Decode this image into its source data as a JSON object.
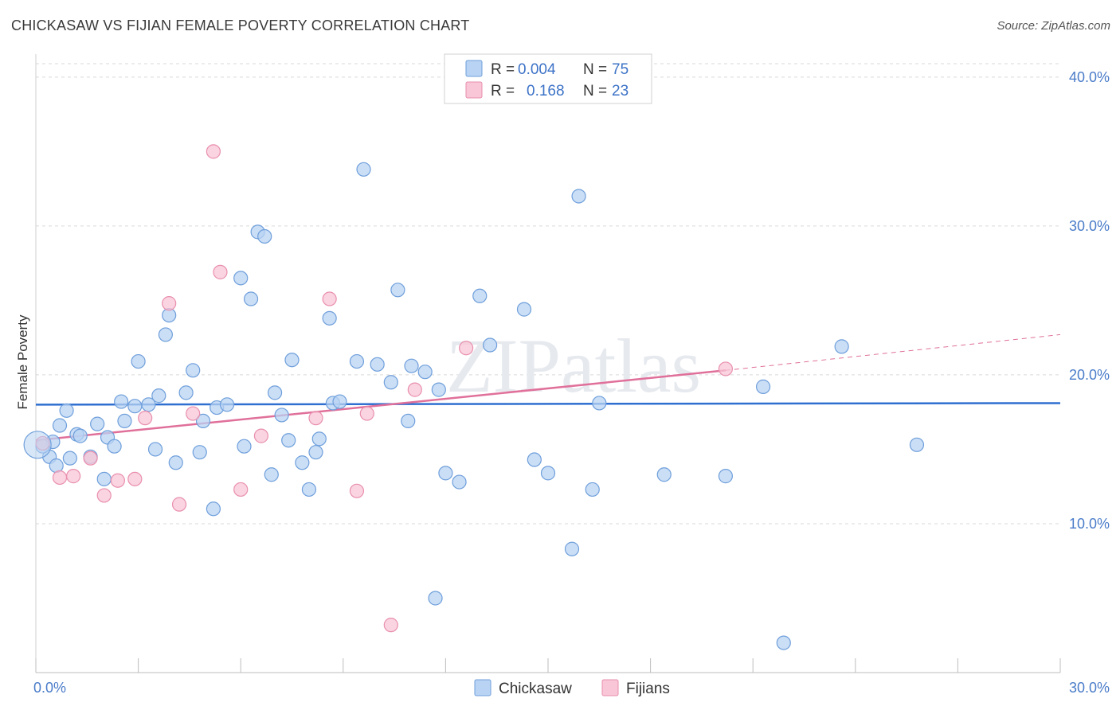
{
  "title": "CHICKASAW VS FIJIAN FEMALE POVERTY CORRELATION CHART",
  "source": "Source: ZipAtlas.com",
  "watermark": "ZIPatlas",
  "colors": {
    "chickasaw_fill": "#b8d3f3",
    "chickasaw_stroke": "#6f9fdb",
    "chickasaw_line": "#2f6fd0",
    "fijians_fill": "#f8c6d6",
    "fijians_stroke": "#e98fae",
    "fijians_line": "#e0709a",
    "tick_label": "#4a7cc9",
    "grid": "#d9d9d9"
  },
  "legend": {
    "rows": [
      {
        "r_label": "R =",
        "r_value": "0.004",
        "n_label": "N =",
        "n_value": "75"
      },
      {
        "r_label": "R =",
        "r_value": "0.168",
        "n_label": "N =",
        "n_value": "23"
      }
    ]
  },
  "bottom_legend": [
    "Chickasaw",
    "Fijians"
  ],
  "chart_data": {
    "type": "scatter",
    "title": "CHICKASAW VS FIJIAN FEMALE POVERTY CORRELATION CHART",
    "xlabel": "",
    "ylabel": "Female Poverty",
    "xlim": [
      0,
      30
    ],
    "ylim": [
      0,
      40
    ],
    "x_tick_labels": [
      "0.0%",
      "30.0%"
    ],
    "y_ticks": [
      10,
      20,
      30,
      40
    ],
    "y_tick_labels": [
      "10.0%",
      "20.0%",
      "30.0%",
      "40.0%"
    ],
    "grid": true,
    "legend_position": "top-center",
    "series": [
      {
        "name": "Chickasaw",
        "R": 0.004,
        "N": 75,
        "trend": {
          "x": [
            0,
            30
          ],
          "y": [
            18.0,
            18.1
          ]
        },
        "points": [
          [
            0.5,
            15.5
          ],
          [
            0.4,
            14.5
          ],
          [
            0.6,
            13.9
          ],
          [
            0.7,
            16.6
          ],
          [
            0.9,
            17.6
          ],
          [
            1.0,
            14.4
          ],
          [
            1.2,
            16.0
          ],
          [
            1.3,
            15.9
          ],
          [
            1.6,
            14.5
          ],
          [
            1.8,
            16.7
          ],
          [
            2.0,
            13.0
          ],
          [
            2.1,
            15.8
          ],
          [
            2.3,
            15.2
          ],
          [
            2.5,
            18.2
          ],
          [
            2.6,
            16.9
          ],
          [
            2.9,
            17.9
          ],
          [
            3.0,
            20.9
          ],
          [
            3.3,
            18.0
          ],
          [
            3.5,
            15.0
          ],
          [
            3.6,
            18.6
          ],
          [
            3.8,
            22.7
          ],
          [
            3.9,
            24.0
          ],
          [
            4.1,
            14.1
          ],
          [
            4.4,
            18.8
          ],
          [
            4.6,
            20.3
          ],
          [
            4.8,
            14.8
          ],
          [
            4.9,
            16.9
          ],
          [
            5.2,
            11.0
          ],
          [
            5.3,
            17.8
          ],
          [
            5.6,
            18.0
          ],
          [
            6.0,
            26.5
          ],
          [
            6.1,
            15.2
          ],
          [
            6.3,
            25.1
          ],
          [
            6.5,
            29.6
          ],
          [
            6.7,
            29.3
          ],
          [
            6.9,
            13.3
          ],
          [
            7.0,
            18.8
          ],
          [
            7.2,
            17.3
          ],
          [
            7.4,
            15.6
          ],
          [
            7.5,
            21.0
          ],
          [
            7.8,
            14.1
          ],
          [
            8.0,
            12.3
          ],
          [
            8.2,
            14.8
          ],
          [
            8.3,
            15.7
          ],
          [
            8.6,
            23.8
          ],
          [
            8.7,
            18.1
          ],
          [
            8.9,
            18.2
          ],
          [
            9.4,
            20.9
          ],
          [
            9.6,
            33.8
          ],
          [
            10.0,
            20.7
          ],
          [
            10.4,
            19.5
          ],
          [
            10.6,
            25.7
          ],
          [
            10.9,
            16.9
          ],
          [
            11.0,
            20.6
          ],
          [
            11.4,
            20.2
          ],
          [
            11.7,
            5.0
          ],
          [
            11.8,
            19.0
          ],
          [
            12.0,
            13.4
          ],
          [
            12.4,
            12.8
          ],
          [
            13.0,
            25.3
          ],
          [
            13.3,
            22.0
          ],
          [
            14.3,
            24.4
          ],
          [
            14.6,
            14.3
          ],
          [
            15.0,
            13.4
          ],
          [
            15.7,
            8.3
          ],
          [
            15.9,
            32.0
          ],
          [
            16.3,
            12.3
          ],
          [
            16.5,
            18.1
          ],
          [
            18.4,
            13.3
          ],
          [
            20.2,
            13.2
          ],
          [
            21.3,
            19.2
          ],
          [
            21.9,
            2.0
          ],
          [
            23.6,
            21.9
          ],
          [
            25.8,
            15.3
          ],
          [
            0.2,
            15.2
          ]
        ]
      },
      {
        "name": "Fijians",
        "R": 0.168,
        "N": 23,
        "trend": {
          "x": [
            0,
            20.2
          ],
          "y": [
            15.6,
            20.3
          ],
          "dashed_to": {
            "x": 30,
            "y": 22.7
          }
        },
        "points": [
          [
            0.2,
            15.4
          ],
          [
            0.7,
            13.1
          ],
          [
            1.1,
            13.2
          ],
          [
            1.6,
            14.4
          ],
          [
            2.0,
            11.9
          ],
          [
            2.4,
            12.9
          ],
          [
            2.9,
            13.0
          ],
          [
            3.2,
            17.1
          ],
          [
            3.9,
            24.8
          ],
          [
            4.2,
            11.3
          ],
          [
            4.6,
            17.4
          ],
          [
            5.2,
            35.0
          ],
          [
            5.4,
            26.9
          ],
          [
            6.0,
            12.3
          ],
          [
            6.6,
            15.9
          ],
          [
            8.2,
            17.1
          ],
          [
            8.6,
            25.1
          ],
          [
            9.4,
            12.2
          ],
          [
            9.7,
            17.4
          ],
          [
            10.4,
            3.2
          ],
          [
            11.1,
            19.0
          ],
          [
            12.6,
            21.8
          ],
          [
            20.2,
            20.4
          ]
        ]
      }
    ]
  }
}
